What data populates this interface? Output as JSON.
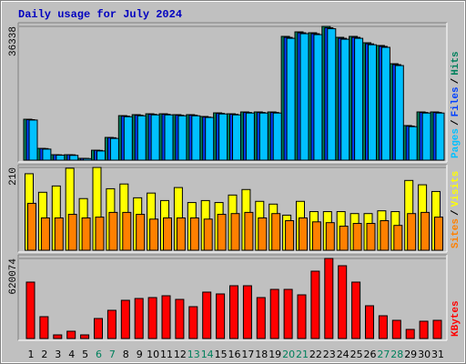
{
  "chart_data": [
    {
      "type": "bar",
      "title": "Daily usage for July 2024",
      "legend_separator": "/",
      "series": [
        {
          "name": "Hits",
          "color": "#00805c",
          "values": [
            11120,
            3200,
            1480,
            1480,
            500,
            2700,
            6180,
            12100,
            12360,
            12600,
            12600,
            12360,
            12360,
            11870,
            12850,
            12600,
            13100,
            13100,
            13100,
            33620,
            34850,
            34610,
            36338,
            33370,
            33620,
            31890,
            31150,
            26200,
            9400,
            13100,
            13100
          ]
        },
        {
          "name": "Files",
          "color": "#0040ff",
          "values": [
            11000,
            3150,
            1450,
            1450,
            480,
            2650,
            6100,
            11950,
            12200,
            12450,
            12450,
            12200,
            12200,
            11700,
            12700,
            12450,
            12950,
            12950,
            12950,
            33350,
            34600,
            34350,
            35950,
            33100,
            33350,
            31600,
            30900,
            25950,
            9250,
            12950,
            12950
          ]
        },
        {
          "name": "Pages",
          "color": "#00c0ff",
          "values": [
            10900,
            3000,
            1350,
            1300,
            420,
            2500,
            5900,
            11800,
            12050,
            12300,
            12300,
            12050,
            12050,
            11600,
            12550,
            12300,
            12800,
            12800,
            12800,
            33100,
            34350,
            34100,
            35700,
            32850,
            33100,
            31350,
            30650,
            25700,
            9100,
            12800,
            12800
          ]
        }
      ],
      "ylim": [
        0,
        36338
      ],
      "yticks": [
        36338
      ],
      "grid": true
    },
    {
      "type": "bar",
      "legend_separator": "/",
      "series": [
        {
          "name": "Visits",
          "color": "#ffff00",
          "values": [
            194,
            147,
            163,
            208,
            131,
            210,
            156,
            168,
            133,
            145,
            126,
            159,
            121,
            126,
            121,
            140,
            154,
            124,
            117,
            89,
            124,
            98,
            98,
            98,
            93,
            93,
            100,
            98,
            177,
            166,
            149
          ]
        },
        {
          "name": "Sites",
          "color": "#ff8000",
          "values": [
            119,
            82,
            82,
            91,
            82,
            84,
            96,
            96,
            91,
            79,
            82,
            82,
            82,
            79,
            91,
            93,
            96,
            82,
            93,
            75,
            82,
            72,
            70,
            61,
            68,
            68,
            75,
            63,
            93,
            96,
            84
          ]
        }
      ],
      "ylim": [
        0,
        210
      ],
      "yticks": [
        210
      ],
      "grid": true
    },
    {
      "type": "bar",
      "categories": [
        "1",
        "2",
        "3",
        "4",
        "5",
        "6",
        "7",
        "8",
        "9",
        "10",
        "11",
        "12",
        "13",
        "14",
        "15",
        "16",
        "17",
        "18",
        "19",
        "20",
        "21",
        "22",
        "23",
        "24",
        "25",
        "26",
        "27",
        "28",
        "29",
        "30",
        "31"
      ],
      "category_colors": [
        "#000000",
        "#000000",
        "#000000",
        "#000000",
        "#000000",
        "#00805c",
        "#00805c",
        "#000000",
        "#000000",
        "#000000",
        "#000000",
        "#000000",
        "#00805c",
        "#00805c",
        "#000000",
        "#000000",
        "#000000",
        "#000000",
        "#000000",
        "#00805c",
        "#00805c",
        "#000000",
        "#000000",
        "#000000",
        "#000000",
        "#000000",
        "#00805c",
        "#00805c",
        "#000000",
        "#000000",
        "#000000"
      ],
      "series": [
        {
          "name": "KBytes",
          "color": "#ff0000",
          "values": [
            436900,
            169100,
            28200,
            56400,
            28200,
            155000,
            218400,
            295900,
            310000,
            317100,
            331200,
            303000,
            246600,
            359400,
            345300,
            408700,
            408700,
            317100,
            380500,
            380500,
            338200,
            521400,
            620074,
            563700,
            436900,
            253700,
            176200,
            140900,
            70500,
            133900,
            140900
          ]
        }
      ],
      "ylim": [
        0,
        620074
      ],
      "yticks": [
        620074
      ],
      "grid": true
    }
  ]
}
